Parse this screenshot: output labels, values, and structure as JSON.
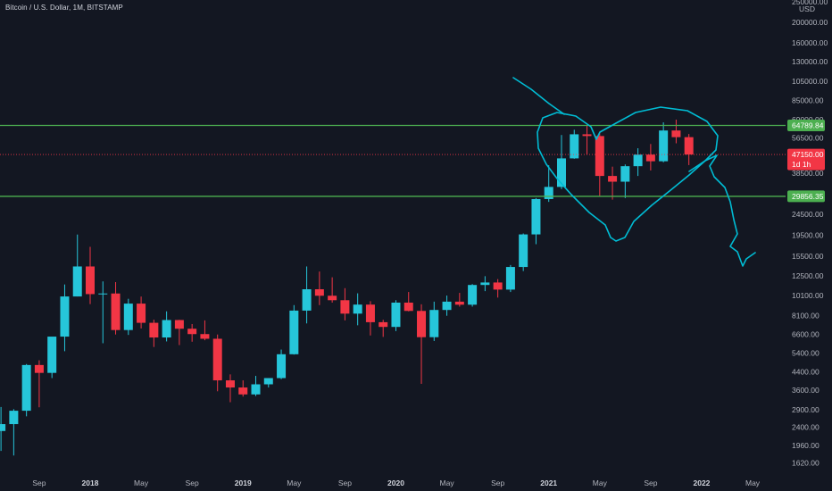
{
  "header": {
    "title": "Bitcoin / U.S. Dollar, 1M, BITSTAMP"
  },
  "chart_data": {
    "type": "candlestick",
    "y_scale": "log",
    "y_unit": "USD",
    "ylim": [
      1480,
      255000
    ],
    "y_ticks": [
      {
        "v": 250000,
        "label": "250000.00"
      },
      {
        "v": 200000,
        "label": "200000.00"
      },
      {
        "v": 160000,
        "label": "160000.00"
      },
      {
        "v": 130000,
        "label": "130000.00"
      },
      {
        "v": 105000,
        "label": "105000.00"
      },
      {
        "v": 85000,
        "label": "85000.00"
      },
      {
        "v": 69000,
        "label": "69000.00"
      },
      {
        "v": 56500,
        "label": "56500.00"
      },
      {
        "v": 38500,
        "label": "38500.00"
      },
      {
        "v": 24500,
        "label": "24500.00"
      },
      {
        "v": 19500,
        "label": "19500.00"
      },
      {
        "v": 15500,
        "label": "15500.00"
      },
      {
        "v": 12500,
        "label": "12500.00"
      },
      {
        "v": 10100,
        "label": "10100.00"
      },
      {
        "v": 8100,
        "label": "8100.00"
      },
      {
        "v": 6600,
        "label": "6600.00"
      },
      {
        "v": 5400,
        "label": "5400.00"
      },
      {
        "v": 4400,
        "label": "4400.00"
      },
      {
        "v": 3600,
        "label": "3600.00"
      },
      {
        "v": 2900,
        "label": "2900.00"
      },
      {
        "v": 2400,
        "label": "2400.00"
      },
      {
        "v": 1960,
        "label": "1960.00"
      },
      {
        "v": 1620,
        "label": "1620.00"
      }
    ],
    "x_ticks": [
      {
        "month": "2017-09",
        "label": "Sep",
        "bold": false
      },
      {
        "month": "2018-01",
        "label": "2018",
        "bold": true
      },
      {
        "month": "2018-05",
        "label": "May",
        "bold": false
      },
      {
        "month": "2018-09",
        "label": "Sep",
        "bold": false
      },
      {
        "month": "2019-01",
        "label": "2019",
        "bold": true
      },
      {
        "month": "2019-05",
        "label": "May",
        "bold": false
      },
      {
        "month": "2019-09",
        "label": "Sep",
        "bold": false
      },
      {
        "month": "2020-01",
        "label": "2020",
        "bold": true
      },
      {
        "month": "2020-05",
        "label": "May",
        "bold": false
      },
      {
        "month": "2020-09",
        "label": "Sep",
        "bold": false
      },
      {
        "month": "2021-01",
        "label": "2021",
        "bold": true
      },
      {
        "month": "2021-05",
        "label": "May",
        "bold": false
      },
      {
        "month": "2021-09",
        "label": "Sep",
        "bold": false
      },
      {
        "month": "2022-01",
        "label": "2022",
        "bold": true
      },
      {
        "month": "2022-05",
        "label": "May",
        "bold": false
      }
    ],
    "candles": [
      {
        "month": "2017-06",
        "o": 2300,
        "h": 2990,
        "l": 1850,
        "c": 2480
      },
      {
        "month": "2017-07",
        "o": 2480,
        "h": 2920,
        "l": 1760,
        "c": 2870
      },
      {
        "month": "2017-08",
        "o": 2870,
        "h": 4780,
        "l": 2700,
        "c": 4730
      },
      {
        "month": "2017-09",
        "o": 4730,
        "h": 4980,
        "l": 2980,
        "c": 4340
      },
      {
        "month": "2017-10",
        "o": 4340,
        "h": 6190,
        "l": 4100,
        "c": 6450
      },
      {
        "month": "2017-11",
        "o": 6450,
        "h": 11400,
        "l": 5500,
        "c": 10000
      },
      {
        "month": "2017-12",
        "o": 10000,
        "h": 19670,
        "l": 10000,
        "c": 13880
      },
      {
        "month": "2018-01",
        "o": 13880,
        "h": 17200,
        "l": 9200,
        "c": 10260
      },
      {
        "month": "2018-02",
        "o": 10260,
        "h": 11790,
        "l": 6000,
        "c": 10330
      },
      {
        "month": "2018-03",
        "o": 10330,
        "h": 11700,
        "l": 6600,
        "c": 6930
      },
      {
        "month": "2018-04",
        "o": 6930,
        "h": 9750,
        "l": 6570,
        "c": 9250
      },
      {
        "month": "2018-05",
        "o": 9250,
        "h": 9990,
        "l": 7050,
        "c": 7500
      },
      {
        "month": "2018-06",
        "o": 7500,
        "h": 7760,
        "l": 5760,
        "c": 6390
      },
      {
        "month": "2018-07",
        "o": 6390,
        "h": 8500,
        "l": 6120,
        "c": 7730
      },
      {
        "month": "2018-08",
        "o": 7730,
        "h": 7750,
        "l": 5880,
        "c": 7030
      },
      {
        "month": "2018-09",
        "o": 7030,
        "h": 7400,
        "l": 6100,
        "c": 6630
      },
      {
        "month": "2018-10",
        "o": 6630,
        "h": 7700,
        "l": 6200,
        "c": 6300
      },
      {
        "month": "2018-11",
        "o": 6300,
        "h": 6600,
        "l": 3550,
        "c": 4000
      },
      {
        "month": "2018-12",
        "o": 4000,
        "h": 4270,
        "l": 3150,
        "c": 3700
      },
      {
        "month": "2019-01",
        "o": 3700,
        "h": 4000,
        "l": 3350,
        "c": 3430
      },
      {
        "month": "2019-02",
        "o": 3430,
        "h": 4200,
        "l": 3370,
        "c": 3830
      },
      {
        "month": "2019-03",
        "o": 3830,
        "h": 4100,
        "l": 3700,
        "c": 4100
      },
      {
        "month": "2019-04",
        "o": 4100,
        "h": 5600,
        "l": 4050,
        "c": 5320
      },
      {
        "month": "2019-05",
        "o": 5320,
        "h": 9100,
        "l": 5300,
        "c": 8570
      },
      {
        "month": "2019-06",
        "o": 8570,
        "h": 13880,
        "l": 7450,
        "c": 10820
      },
      {
        "month": "2019-07",
        "o": 10820,
        "h": 13130,
        "l": 9100,
        "c": 10080
      },
      {
        "month": "2019-08",
        "o": 10080,
        "h": 12330,
        "l": 9350,
        "c": 9600
      },
      {
        "month": "2019-09",
        "o": 9600,
        "h": 10950,
        "l": 7700,
        "c": 8290
      },
      {
        "month": "2019-10",
        "o": 8290,
        "h": 10350,
        "l": 7300,
        "c": 9150
      },
      {
        "month": "2019-11",
        "o": 9150,
        "h": 9500,
        "l": 6530,
        "c": 7550
      },
      {
        "month": "2019-12",
        "o": 7550,
        "h": 7750,
        "l": 6430,
        "c": 7170
      },
      {
        "month": "2020-01",
        "o": 7170,
        "h": 9600,
        "l": 6850,
        "c": 9350
      },
      {
        "month": "2020-02",
        "o": 9350,
        "h": 10500,
        "l": 8500,
        "c": 8540
      },
      {
        "month": "2020-03",
        "o": 8540,
        "h": 9180,
        "l": 3850,
        "c": 6410
      },
      {
        "month": "2020-04",
        "o": 6410,
        "h": 9450,
        "l": 6150,
        "c": 8630
      },
      {
        "month": "2020-05",
        "o": 8630,
        "h": 10100,
        "l": 8100,
        "c": 9450
      },
      {
        "month": "2020-06",
        "o": 9450,
        "h": 10400,
        "l": 8950,
        "c": 9140
      },
      {
        "month": "2020-07",
        "o": 9140,
        "h": 11450,
        "l": 8950,
        "c": 11340
      },
      {
        "month": "2020-08",
        "o": 11340,
        "h": 12480,
        "l": 10600,
        "c": 11650
      },
      {
        "month": "2020-09",
        "o": 11650,
        "h": 12090,
        "l": 9880,
        "c": 10780
      },
      {
        "month": "2020-10",
        "o": 10780,
        "h": 14100,
        "l": 10500,
        "c": 13800
      },
      {
        "month": "2020-11",
        "o": 13800,
        "h": 19900,
        "l": 13200,
        "c": 19700
      },
      {
        "month": "2020-12",
        "o": 19700,
        "h": 29300,
        "l": 17700,
        "c": 28990
      },
      {
        "month": "2021-01",
        "o": 28990,
        "h": 41950,
        "l": 28100,
        "c": 33100
      },
      {
        "month": "2021-02",
        "o": 33100,
        "h": 58350,
        "l": 32300,
        "c": 45200
      },
      {
        "month": "2021-03",
        "o": 45200,
        "h": 61800,
        "l": 45000,
        "c": 58800
      },
      {
        "month": "2021-04",
        "o": 58800,
        "h": 64800,
        "l": 47000,
        "c": 57700
      },
      {
        "month": "2021-05",
        "o": 57700,
        "h": 59500,
        "l": 30000,
        "c": 37300
      },
      {
        "month": "2021-06",
        "o": 37300,
        "h": 41300,
        "l": 28800,
        "c": 35040
      },
      {
        "month": "2021-07",
        "o": 35040,
        "h": 42300,
        "l": 29300,
        "c": 41500
      },
      {
        "month": "2021-08",
        "o": 41500,
        "h": 50500,
        "l": 37300,
        "c": 47100
      },
      {
        "month": "2021-09",
        "o": 47100,
        "h": 52900,
        "l": 39600,
        "c": 43800
      },
      {
        "month": "2021-10",
        "o": 43800,
        "h": 67000,
        "l": 43300,
        "c": 61300
      },
      {
        "month": "2021-11",
        "o": 61300,
        "h": 69000,
        "l": 53300,
        "c": 57000
      },
      {
        "month": "2021-12",
        "o": 57000,
        "h": 59000,
        "l": 42000,
        "c": 47150
      }
    ],
    "horizontal_lines": [
      {
        "value": 64789.84,
        "label": "64789.84",
        "color": "#4caf50"
      },
      {
        "value": 29856.35,
        "label": "29856.35",
        "color": "#4caf50"
      }
    ],
    "last_price": {
      "value": 47150.0,
      "label": "47150.00",
      "countdown": "1d 1h",
      "color": "#f23645"
    },
    "colors": {
      "up": "#22ab94",
      "up_fill": "#26c6da",
      "down": "#f23645",
      "background": "#131722",
      "drawing": "#00bcd4"
    }
  },
  "annotations": {
    "heart": [
      [
        602,
        148
      ],
      [
        608,
        132
      ],
      [
        624,
        126
      ],
      [
        645,
        130
      ],
      [
        662,
        142
      ],
      [
        668,
        156
      ],
      [
        672,
        148
      ],
      [
        690,
        138
      ],
      [
        712,
        126
      ],
      [
        740,
        120
      ],
      [
        770,
        124
      ],
      [
        792,
        136
      ],
      [
        804,
        152
      ],
      [
        802,
        168
      ],
      [
        790,
        180
      ],
      [
        772,
        196
      ],
      [
        750,
        214
      ],
      [
        730,
        230
      ],
      [
        710,
        248
      ],
      [
        700,
        266
      ],
      [
        690,
        270
      ],
      [
        684,
        266
      ],
      [
        678,
        252
      ],
      [
        660,
        238
      ],
      [
        640,
        218
      ],
      [
        624,
        200
      ],
      [
        612,
        184
      ],
      [
        603,
        166
      ],
      [
        602,
        148
      ]
    ],
    "entry_stroke": [
      [
        575,
        87
      ],
      [
        595,
        100
      ],
      [
        615,
        116
      ],
      [
        632,
        128
      ]
    ],
    "projection": [
      [
        772,
        192
      ],
      [
        790,
        180
      ],
      [
        803,
        174
      ],
      [
        795,
        186
      ],
      [
        800,
        198
      ],
      [
        812,
        210
      ],
      [
        818,
        226
      ],
      [
        822,
        246
      ],
      [
        826,
        262
      ],
      [
        818,
        276
      ],
      [
        826,
        282
      ],
      [
        832,
        298
      ],
      [
        836,
        290
      ],
      [
        846,
        283
      ]
    ]
  }
}
